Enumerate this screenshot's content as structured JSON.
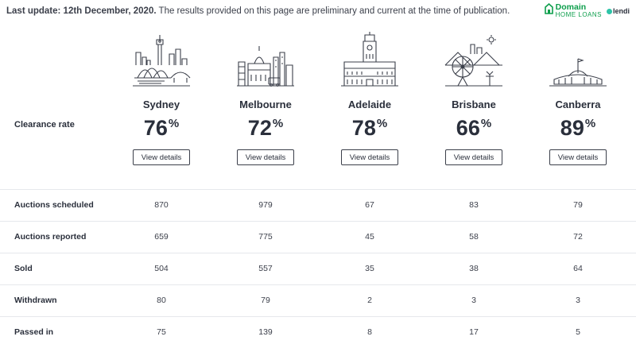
{
  "header": {
    "last_update_label": "Last update: 12th December, 2020.",
    "notice": " The results provided on this page are preliminary and current at the time of publication."
  },
  "brand": {
    "domain_label": "Domain",
    "home_loans_label": "HOME LOANS",
    "lendi_label": "lendi"
  },
  "clearance_label": "Clearance rate",
  "percent_symbol": "%",
  "view_details_label": "View details",
  "cities": [
    {
      "name": "Sydney",
      "rate": "76",
      "icon": "sydney-skyline-icon"
    },
    {
      "name": "Melbourne",
      "rate": "72",
      "icon": "melbourne-skyline-icon"
    },
    {
      "name": "Adelaide",
      "rate": "78",
      "icon": "adelaide-skyline-icon"
    },
    {
      "name": "Brisbane",
      "rate": "66",
      "icon": "brisbane-skyline-icon"
    },
    {
      "name": "Canberra",
      "rate": "89",
      "icon": "canberra-skyline-icon"
    }
  ],
  "table": {
    "rows": [
      {
        "label": "Auctions scheduled",
        "values": [
          "870",
          "979",
          "67",
          "83",
          "79"
        ]
      },
      {
        "label": "Auctions reported",
        "values": [
          "659",
          "775",
          "45",
          "58",
          "72"
        ]
      },
      {
        "label": "Sold",
        "values": [
          "504",
          "557",
          "35",
          "38",
          "64"
        ]
      },
      {
        "label": "Withdrawn",
        "values": [
          "80",
          "79",
          "2",
          "3",
          "3"
        ]
      },
      {
        "label": "Passed in",
        "values": [
          "75",
          "139",
          "8",
          "17",
          "5"
        ]
      }
    ]
  }
}
